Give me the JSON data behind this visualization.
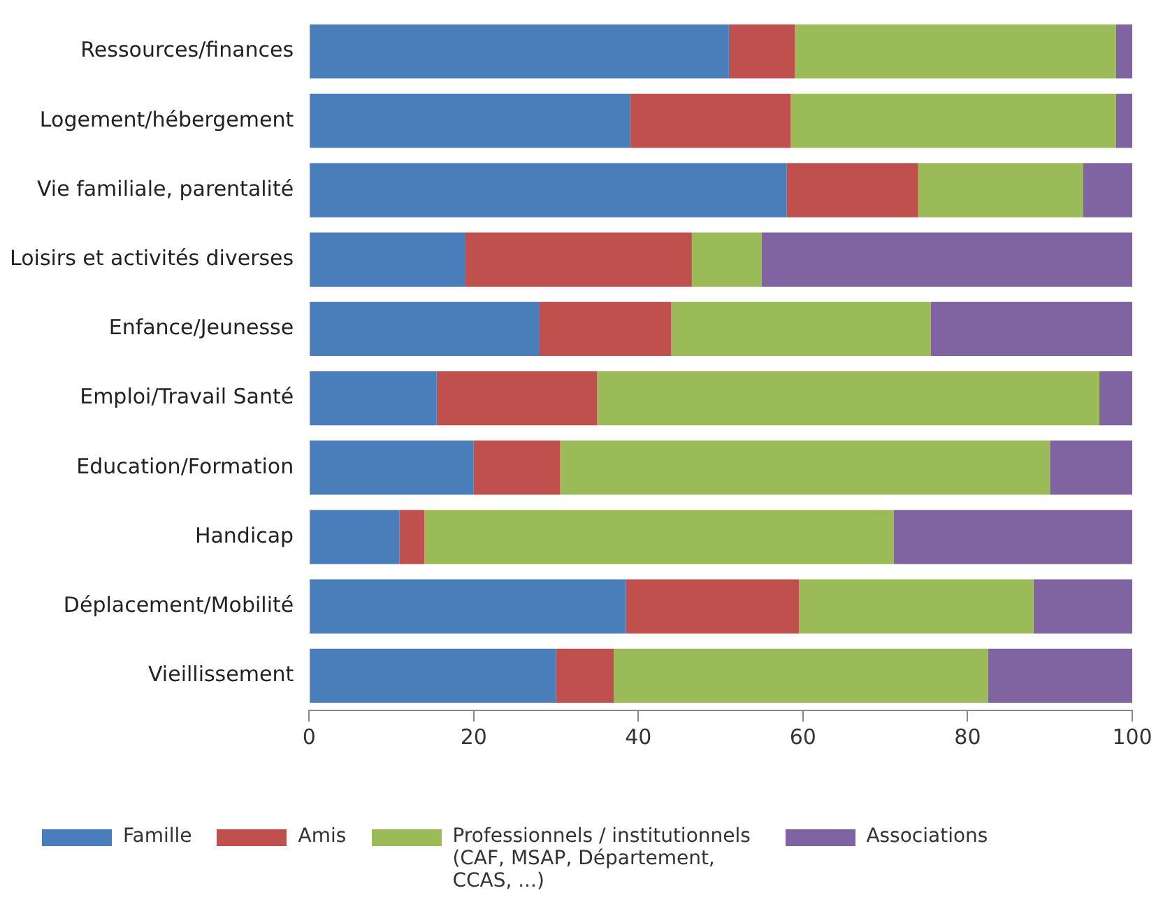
{
  "chart_data": {
    "type": "bar",
    "orientation": "horizontal",
    "stacked": true,
    "categories": [
      "Ressources/finances",
      "Logement/hébergement",
      "Vie familiale, parentalité",
      "Loisirs et activités diverses",
      "Enfance/Jeunesse",
      "Emploi/Travail Santé",
      "Education/Formation",
      "Handicap",
      "Déplacement/Mobilité",
      "Vieillissement"
    ],
    "series": [
      {
        "name": "Famille",
        "color": "#4a7ebb",
        "values": [
          51,
          39,
          58,
          19,
          28,
          15.5,
          20,
          11,
          38.5,
          30
        ]
      },
      {
        "name": "Amis",
        "color": "#c0504d",
        "values": [
          8,
          19.5,
          16,
          27.5,
          16,
          19.5,
          10.5,
          3,
          21,
          7
        ]
      },
      {
        "name": "Professionnels / institutionnels (CAF, MSAP, Département, CCAS, ...)",
        "color": "#9bbb59",
        "values": [
          39,
          39.5,
          20,
          8.5,
          31.5,
          61,
          59.5,
          57,
          28.5,
          45.5
        ]
      },
      {
        "name": "Associations",
        "color": "#8064a2",
        "values": [
          2,
          2,
          6,
          45,
          24.5,
          4,
          10,
          29,
          12,
          17.5
        ]
      }
    ],
    "xlim": [
      0,
      100
    ],
    "xticks": [
      0,
      20,
      40,
      60,
      80,
      100
    ],
    "grid": false,
    "legend": "bottom"
  }
}
